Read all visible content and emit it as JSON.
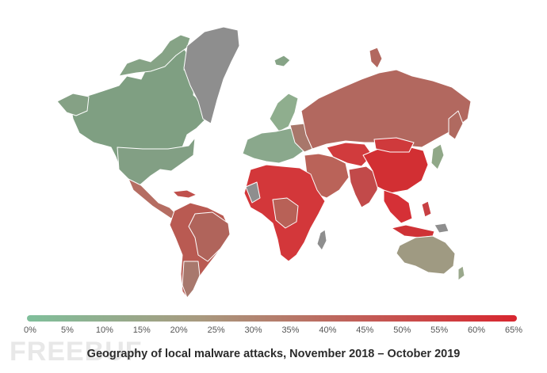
{
  "figure": {
    "caption": "Geography of local malware attacks, November 2018 – October 2019",
    "watermark": "FREEBUF"
  },
  "legend": {
    "ticks": [
      "0%",
      "5%",
      "10%",
      "15%",
      "20%",
      "25%",
      "30%",
      "35%",
      "40%",
      "45%",
      "50%",
      "55%",
      "60%",
      "65%"
    ],
    "color_low": "#7fbf9b",
    "color_high": "#d8262f"
  },
  "colors": {
    "no_data": "#8e8e8e",
    "border": "#ffffff",
    "background": "#ffffff"
  },
  "regions": [
    {
      "name": "north-america",
      "level": "low",
      "color": "#7f9f82"
    },
    {
      "name": "greenland",
      "level": "no-data",
      "color": "#8e8e8e"
    },
    {
      "name": "central-america",
      "level": "mid",
      "color": "#b56d62"
    },
    {
      "name": "south-america",
      "level": "mid-high",
      "color": "#b95a52"
    },
    {
      "name": "europe",
      "level": "low",
      "color": "#8aa88c"
    },
    {
      "name": "russia",
      "level": "mid",
      "color": "#b2685f"
    },
    {
      "name": "africa",
      "level": "high",
      "color": "#d3373a"
    },
    {
      "name": "middle-east",
      "level": "mid",
      "color": "#ba6359"
    },
    {
      "name": "china",
      "level": "high",
      "color": "#d22f33"
    },
    {
      "name": "south-asia",
      "level": "mid-high",
      "color": "#c24a4a"
    },
    {
      "name": "southeast-asia",
      "level": "high",
      "color": "#d53036"
    },
    {
      "name": "australia",
      "level": "low-mid",
      "color": "#9f9a82"
    },
    {
      "name": "japan",
      "level": "low",
      "color": "#90a888"
    }
  ]
}
